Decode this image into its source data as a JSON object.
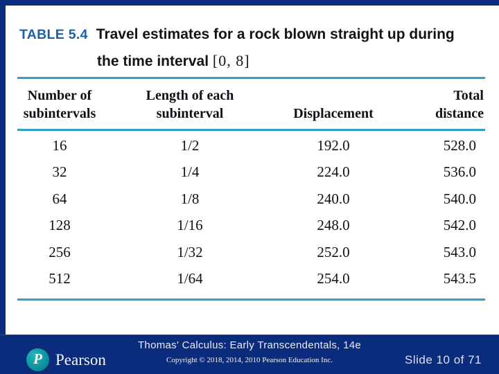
{
  "slide": {
    "table_label": "TABLE 5.4",
    "title_line1": "Travel estimates for a rock blown straight up during",
    "title_line2_text": "the time interval",
    "title_line2_math": "[0, 8]"
  },
  "table": {
    "columns": [
      {
        "lines": [
          "Number of",
          "subintervals"
        ]
      },
      {
        "lines": [
          "Length of each",
          "subinterval"
        ]
      },
      {
        "lines": [
          "Displacement"
        ]
      },
      {
        "lines": [
          "Total",
          "distance"
        ]
      }
    ],
    "rows": [
      [
        "16",
        "1/2",
        "192.0",
        "528.0"
      ],
      [
        "32",
        "1/4",
        "224.0",
        "536.0"
      ],
      [
        "64",
        "1/8",
        "240.0",
        "540.0"
      ],
      [
        "128",
        "1/16",
        "248.0",
        "542.0"
      ],
      [
        "256",
        "1/32",
        "252.0",
        "543.0"
      ],
      [
        "512",
        "1/64",
        "254.0",
        "543.5"
      ]
    ]
  },
  "footer": {
    "book_title": "Thomas' Calculus: Early Transcendentals, 14e",
    "copyright": "Copyright © 2018, 2014, 2010 Pearson Education Inc.",
    "slide_indicator": "Slide 10 of 71",
    "brand_name": "Pearson",
    "logo_glyph": "P"
  },
  "colors": {
    "frame_navy": "#0b2c7d",
    "rule_cyan": "#2fa0c8",
    "table_label_blue": "#1d5fa8",
    "logo_teal": "#0c929e"
  }
}
